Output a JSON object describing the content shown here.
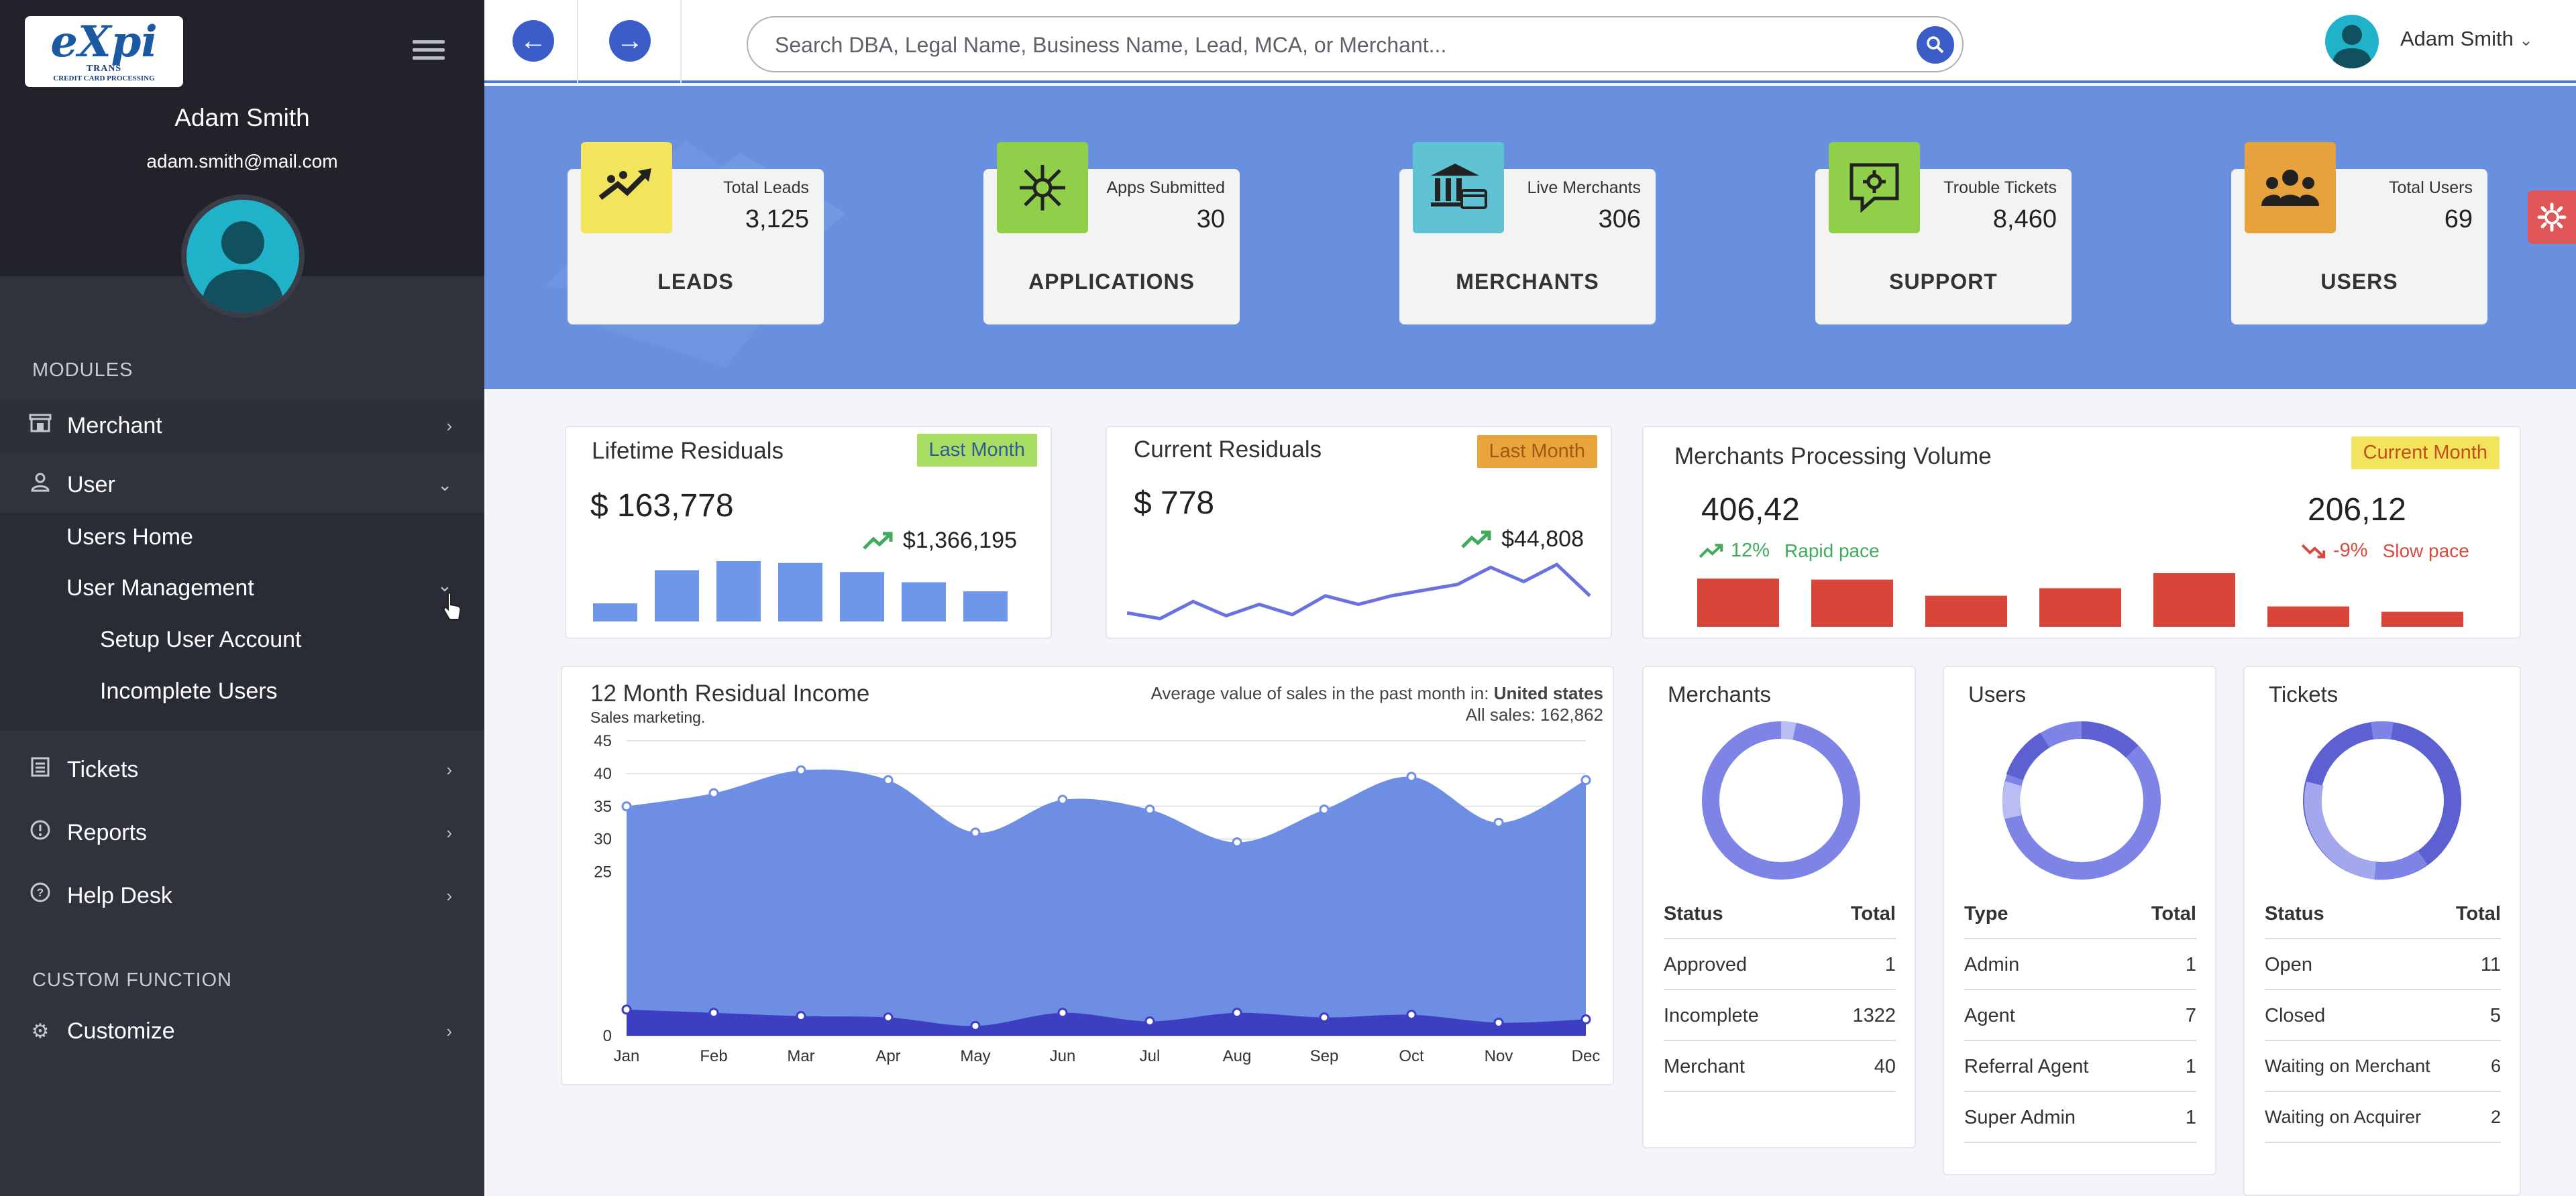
{
  "sidebar": {
    "logo_main": "eXpi",
    "logo_sub": "TRANS",
    "logo_tag": "CREDIT CARD PROCESSING",
    "user_name": "Adam Smith",
    "user_email": "adam.smith@mail.com",
    "section_modules": "MODULES",
    "section_custom": "CUSTOM FUNCTION",
    "items": [
      {
        "label": "Merchant",
        "icon": "store-icon"
      },
      {
        "label": "User",
        "icon": "user-icon"
      },
      {
        "label": "Tickets",
        "icon": "list-icon"
      },
      {
        "label": "Reports",
        "icon": "alert-icon"
      },
      {
        "label": "Help Desk",
        "icon": "help-icon"
      },
      {
        "label": "Customize",
        "icon": "gear-icon"
      }
    ],
    "user_sub": [
      "Users Home",
      "User Management"
    ],
    "user_mgmt_sub": [
      "Setup User Account",
      "Incomplete Users"
    ]
  },
  "topbar": {
    "search_placeholder": "Search DBA, Legal Name, Business Name, Lead, MCA, or Merchant...",
    "user_name": "Adam Smith"
  },
  "stats": [
    {
      "label": "Total Leads",
      "value": "3,125",
      "title": "LEADS",
      "color": "#f2e45c"
    },
    {
      "label": "Apps Submitted",
      "value": "30",
      "title": "APPLICATIONS",
      "color": "#8fcf4a"
    },
    {
      "label": "Live Merchants",
      "value": "306",
      "title": "MERCHANTS",
      "color": "#5fc3d4"
    },
    {
      "label": "Trouble Tickets",
      "value": "8,460",
      "title": "SUPPORT",
      "color": "#8fcf4a"
    },
    {
      "label": "Total Users",
      "value": "69",
      "title": "USERS",
      "color": "#e6a23c"
    }
  ],
  "lifetime": {
    "title": "Lifetime Residuals",
    "badge": "Last Month",
    "value": "$ 163,778",
    "trend": "$1,366,195",
    "bars": [
      0.3,
      0.85,
      1.0,
      0.97,
      0.82,
      0.65,
      0.5
    ]
  },
  "current": {
    "title": "Current Residuals",
    "badge": "Last Month",
    "value": "$ 778",
    "trend": "$44,808",
    "line": [
      0.15,
      0.05,
      0.35,
      0.1,
      0.3,
      0.12,
      0.45,
      0.3,
      0.45,
      0.55,
      0.65,
      0.95,
      0.7,
      1.0,
      0.45
    ]
  },
  "volume": {
    "title": "Merchants Processing Volume",
    "badge": "Current Month",
    "left_value": "406,42",
    "left_pct": "12%",
    "left_note": "Rapid pace",
    "right_value": "206,12",
    "right_pct": "-9%",
    "right_note": "Slow pace",
    "bars": [
      0.9,
      0.88,
      0.58,
      0.72,
      1.0,
      0.38,
      0.28
    ]
  },
  "residual_income": {
    "title": "12 Month Residual Income",
    "subtitle": "Sales marketing.",
    "note_prefix": "Average value of sales in the past month in:",
    "note_country": "United states",
    "all_sales": "All sales: 162,862"
  },
  "chart_data": {
    "type": "area",
    "categories": [
      "Jan",
      "Feb",
      "Mar",
      "Apr",
      "May",
      "Jun",
      "Jul",
      "Aug",
      "Sep",
      "Oct",
      "Nov",
      "Dec"
    ],
    "series": [
      {
        "values": [
          35,
          37,
          40.5,
          39,
          31,
          36,
          34.5,
          29.5,
          34.5,
          39.5,
          32.5,
          39
        ]
      },
      {
        "values": [
          4,
          3.5,
          3,
          2.8,
          1.5,
          3.5,
          2.2,
          3.5,
          2.8,
          3.2,
          2,
          2.5
        ]
      }
    ],
    "yticks": [
      0,
      25,
      30,
      35,
      40,
      45
    ],
    "ylim": [
      0,
      45
    ],
    "grid": true
  },
  "merchants": {
    "title": "Merchants",
    "h1": "Status",
    "h2": "Total",
    "rows": [
      [
        "Approved",
        "1"
      ],
      [
        "Incomplete",
        "1322"
      ],
      [
        "Merchant",
        "40"
      ]
    ]
  },
  "users": {
    "title": "Users",
    "h1": "Type",
    "h2": "Total",
    "rows": [
      [
        "Admin",
        "1"
      ],
      [
        "Agent",
        "7"
      ],
      [
        "Referral Agent",
        "1"
      ],
      [
        "Super Admin",
        "1"
      ]
    ]
  },
  "tickets": {
    "title": "Tickets",
    "h1": "Status",
    "h2": "Total",
    "rows": [
      [
        "Open",
        "11"
      ],
      [
        "Closed",
        "5"
      ],
      [
        "Waiting on Merchant",
        "6"
      ],
      [
        "Waiting on Acquirer",
        "2"
      ]
    ]
  }
}
